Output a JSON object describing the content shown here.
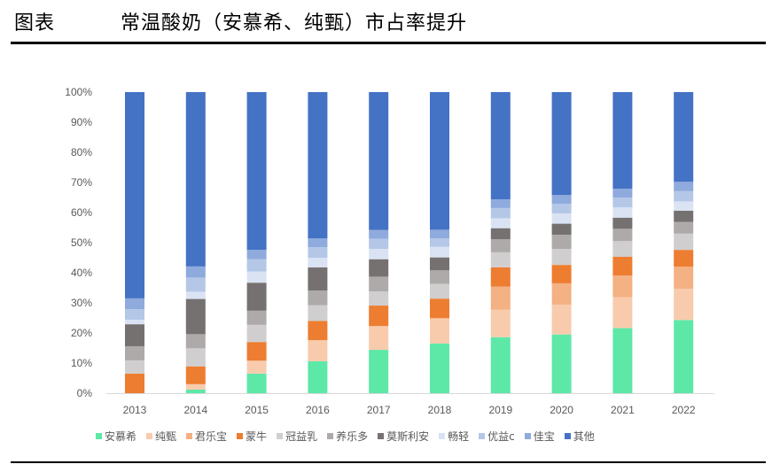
{
  "header": {
    "figure_label": "图表",
    "title": "常温酸奶（安慕希、纯甄）市占率提升"
  },
  "chart_data": {
    "type": "bar",
    "stacked": "percent",
    "title": "常温酸奶（安慕希、纯甄）市占率提升",
    "xlabel": "",
    "ylabel": "",
    "ylim": [
      0,
      100
    ],
    "yticks": [
      "0%",
      "10%",
      "20%",
      "30%",
      "40%",
      "50%",
      "60%",
      "70%",
      "80%",
      "90%",
      "100%"
    ],
    "grid": false,
    "legend_position": "bottom",
    "categories": [
      "2013",
      "2014",
      "2015",
      "2016",
      "2017",
      "2018",
      "2019",
      "2020",
      "2021",
      "2022"
    ],
    "series": [
      {
        "name": "安慕希",
        "color": "#5DE8A8",
        "values": [
          0,
          1.2,
          6.5,
          10.6,
          14.4,
          16.5,
          18.6,
          19.5,
          21.6,
          24.3
        ]
      },
      {
        "name": "纯甄",
        "color": "#F8CBAD",
        "values": [
          0,
          1.8,
          4.3,
          7.0,
          7.9,
          8.4,
          9.1,
          9.9,
          10.3,
          10.4
        ]
      },
      {
        "name": "君乐宝",
        "color": "#F4B183",
        "values": [
          0,
          0,
          0,
          0,
          0,
          0,
          7.7,
          7.1,
          7.2,
          7.3
        ]
      },
      {
        "name": "蒙牛",
        "color": "#ED7D31",
        "values": [
          6.5,
          5.9,
          6.2,
          6.4,
          6.8,
          6.5,
          6.4,
          6.1,
          6.2,
          5.6
        ]
      },
      {
        "name": "冠益乳",
        "color": "#D0CECE",
        "values": [
          4.4,
          6.0,
          5.7,
          5.2,
          4.7,
          4.9,
          5.0,
          5.3,
          5.2,
          5.4
        ]
      },
      {
        "name": "养乐多",
        "color": "#AEAAAA",
        "values": [
          4.7,
          4.7,
          4.7,
          4.9,
          4.9,
          4.5,
          4.3,
          4.7,
          4.1,
          3.9
        ]
      },
      {
        "name": "莫斯利安",
        "color": "#767171",
        "values": [
          7.3,
          11.7,
          9.3,
          7.7,
          5.8,
          4.3,
          3.7,
          3.7,
          3.7,
          3.7
        ]
      },
      {
        "name": "畅轻",
        "color": "#DAE3F3",
        "values": [
          1.5,
          2.4,
          3.7,
          3.2,
          3.4,
          3.5,
          3.3,
          3.4,
          3.4,
          3.1
        ]
      },
      {
        "name": "优益c",
        "color": "#B4C7E7",
        "values": [
          3.5,
          4.7,
          4.1,
          3.5,
          3.4,
          2.8,
          3.4,
          3.2,
          3.3,
          3.4
        ]
      },
      {
        "name": "佳宝",
        "color": "#8FAADC",
        "values": [
          3.6,
          3.7,
          3.1,
          2.9,
          2.9,
          2.9,
          2.9,
          2.9,
          2.9,
          3.1
        ]
      },
      {
        "name": "其他",
        "color": "#4472C4",
        "values": [
          68.5,
          57.9,
          52.4,
          48.6,
          45.8,
          45.7,
          35.6,
          34.2,
          32.1,
          29.8
        ]
      }
    ]
  }
}
